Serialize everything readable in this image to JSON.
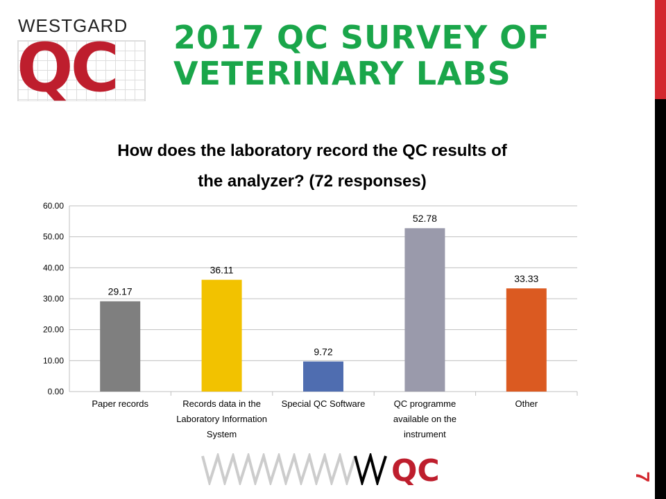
{
  "logo": {
    "top_text": "WESTGARD",
    "main_text": "QC"
  },
  "title": {
    "line1": "2017 QC SURVEY OF",
    "line2": "VETERINARY LABS"
  },
  "slide_number": "7",
  "bottom_logo": {
    "text": "QC"
  },
  "colors": {
    "title": "#1aa64a",
    "brand_red": "#be1e2d"
  },
  "chart_data": {
    "type": "bar",
    "title": "How does the laboratory record the QC results of the analyzer? (72 responses)",
    "title_lines": [
      "How does the laboratory record the QC results of",
      "the analyzer? (72 responses)"
    ],
    "categories": [
      [
        "Paper records"
      ],
      [
        "Records data in the",
        "Laboratory Information",
        "System"
      ],
      [
        "Special QC Software"
      ],
      [
        "QC programme",
        "available on the",
        "instrument"
      ],
      [
        "Other"
      ]
    ],
    "values": [
      29.17,
      36.11,
      9.72,
      52.78,
      33.33
    ],
    "data_labels": [
      "29.17",
      "36.11",
      "9.72",
      "52.78",
      "33.33"
    ],
    "colors": [
      "#7f7f7f",
      "#f2c200",
      "#4f6db0",
      "#9a9aab",
      "#db5a21"
    ],
    "ylim": [
      0,
      60
    ],
    "yticks": [
      "0.00",
      "10.00",
      "20.00",
      "30.00",
      "40.00",
      "50.00",
      "60.00"
    ],
    "grid": true,
    "legend": "none"
  }
}
